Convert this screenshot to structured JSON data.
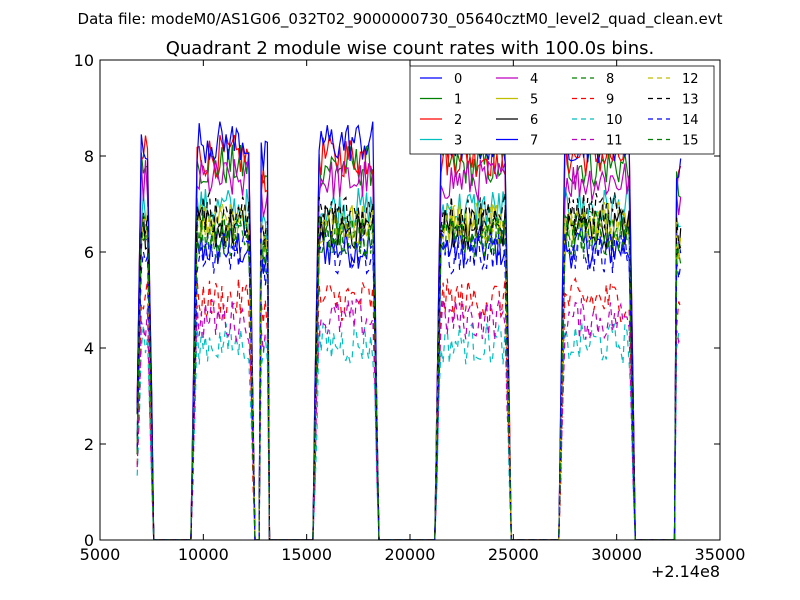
{
  "suptitle": "Data file: modeM0/AS1G06_032T02_9000000730_05640cztM0_level2_quad_clean.evt",
  "chart_data": {
    "type": "line",
    "title": "Quadrant 2 module wise count rates with 100.0s bins.",
    "xlabel": "",
    "ylabel": "",
    "xlim": [
      5000,
      35000
    ],
    "ylim": [
      0,
      10
    ],
    "x_offset_label": "+2.14e8",
    "x_ticks": [
      5000,
      10000,
      15000,
      20000,
      25000,
      30000,
      35000
    ],
    "y_ticks": [
      0,
      2,
      4,
      6,
      8,
      10
    ],
    "grid": false,
    "legend_position": "top-right",
    "legend_columns": 4,
    "segments": [
      [
        6800,
        7500
      ],
      [
        9500,
        12400
      ],
      [
        12800,
        13100
      ],
      [
        15400,
        18400
      ],
      [
        21300,
        24800
      ],
      [
        27300,
        30800
      ],
      [
        32900,
        33100
      ]
    ],
    "series": [
      {
        "name": "0",
        "color": "#0000ff",
        "dash": "solid",
        "level": 6.1,
        "extra": 0.0
      },
      {
        "name": "1",
        "color": "#008000",
        "dash": "solid",
        "level": 7.8,
        "extra": 0.0
      },
      {
        "name": "2",
        "color": "#ff0000",
        "dash": "solid",
        "level": 8.0,
        "extra": 0.0
      },
      {
        "name": "3",
        "color": "#00bfbf",
        "dash": "solid",
        "level": 6.9,
        "extra": 0.0
      },
      {
        "name": "4",
        "color": "#bf00bf",
        "dash": "solid",
        "level": 7.5,
        "extra": 0.0
      },
      {
        "name": "5",
        "color": "#bfbf00",
        "dash": "solid",
        "level": 6.6,
        "extra": 0.0
      },
      {
        "name": "6",
        "color": "#000000",
        "dash": "solid",
        "level": 6.5,
        "extra": 0.0
      },
      {
        "name": "7",
        "color": "#0000ff",
        "dash": "solid",
        "level": 8.3,
        "extra": 0.0
      },
      {
        "name": "8",
        "color": "#008000",
        "dash": "dashed",
        "level": 6.4,
        "extra": 0.0
      },
      {
        "name": "9",
        "color": "#ff0000",
        "dash": "dashed",
        "level": 5.0,
        "extra": 0.0
      },
      {
        "name": "10",
        "color": "#00bfbf",
        "dash": "dashed",
        "level": 4.1,
        "extra": 0.0
      },
      {
        "name": "11",
        "color": "#bf00bf",
        "dash": "dashed",
        "level": 4.6,
        "extra": 0.0
      },
      {
        "name": "12",
        "color": "#bfbf00",
        "dash": "dashed",
        "level": 6.6,
        "extra": 0.0
      },
      {
        "name": "13",
        "color": "#000000",
        "dash": "dashed",
        "level": 6.8,
        "extra": 0.0
      },
      {
        "name": "14",
        "color": "#0000ff",
        "dash": "dashed",
        "level": 6.0,
        "extra": 0.0
      },
      {
        "name": "15",
        "color": "#008000",
        "dash": "dashed",
        "level": 6.3,
        "extra": 0.0
      }
    ]
  }
}
